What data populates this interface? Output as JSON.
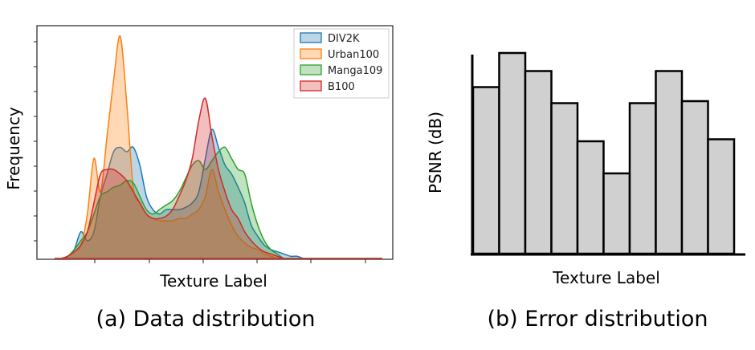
{
  "chart_data": [
    {
      "type": "area",
      "caption": "(a) Data distribution",
      "xlabel": "Texture Label",
      "ylabel": "Frequency",
      "legend_position": "top-right",
      "x": [
        0,
        2,
        4,
        6,
        8,
        10,
        12,
        14,
        16,
        18,
        20,
        22,
        24,
        26,
        28,
        30,
        32,
        34,
        36,
        38,
        40,
        42,
        44,
        46,
        48,
        50,
        52,
        54,
        56,
        58,
        60,
        62,
        64,
        66,
        68,
        70,
        72,
        74,
        76,
        78,
        80,
        82,
        84,
        86,
        88,
        90,
        92,
        94,
        96,
        98,
        100
      ],
      "ylim": [
        0,
        1
      ],
      "series": [
        {
          "name": "DIV2K",
          "color": "#1f77b4",
          "values": [
            0,
            0,
            0.01,
            0.04,
            0.12,
            0.08,
            0.12,
            0.28,
            0.38,
            0.48,
            0.5,
            0.48,
            0.5,
            0.42,
            0.28,
            0.22,
            0.2,
            0.22,
            0.22,
            0.22,
            0.23,
            0.25,
            0.3,
            0.45,
            0.58,
            0.5,
            0.42,
            0.38,
            0.32,
            0.25,
            0.15,
            0.1,
            0.06,
            0.04,
            0.03,
            0.02,
            0.01,
            0.01,
            0.0,
            0.0,
            0.0,
            0.0,
            0.0,
            0.0,
            0.0,
            0.0,
            0.0,
            0.0,
            0.0,
            0.0,
            0.0
          ]
        },
        {
          "name": "Urban100",
          "color": "#ff7f0e",
          "values": [
            0,
            0,
            0.01,
            0.03,
            0.06,
            0.2,
            0.45,
            0.3,
            0.55,
            0.8,
            1.0,
            0.7,
            0.32,
            0.25,
            0.2,
            0.18,
            0.17,
            0.17,
            0.17,
            0.18,
            0.18,
            0.2,
            0.22,
            0.28,
            0.4,
            0.3,
            0.22,
            0.15,
            0.1,
            0.07,
            0.05,
            0.04,
            0.02,
            0.01,
            0.0,
            0.0,
            0.0,
            0.0,
            0.0,
            0.0,
            0.0,
            0.0,
            0.0,
            0.0,
            0.0,
            0.0,
            0.0,
            0.0,
            0.0,
            0.0,
            0.0
          ]
        },
        {
          "name": "Manga109",
          "color": "#2ca02c",
          "values": [
            0,
            0,
            0.01,
            0.04,
            0.08,
            0.12,
            0.2,
            0.28,
            0.3,
            0.32,
            0.33,
            0.35,
            0.34,
            0.28,
            0.22,
            0.2,
            0.22,
            0.24,
            0.26,
            0.3,
            0.36,
            0.42,
            0.44,
            0.4,
            0.44,
            0.48,
            0.5,
            0.45,
            0.4,
            0.38,
            0.25,
            0.15,
            0.08,
            0.04,
            0.02,
            0.0,
            0.0,
            0.0,
            0.0,
            0.0,
            0.0,
            0.0,
            0.0,
            0.0,
            0.0,
            0.0,
            0.0,
            0.0,
            0.0,
            0.0,
            0.0
          ]
        },
        {
          "name": "B100",
          "color": "#d62728",
          "values": [
            0,
            0,
            0.01,
            0.03,
            0.06,
            0.12,
            0.25,
            0.38,
            0.4,
            0.4,
            0.38,
            0.35,
            0.3,
            0.25,
            0.2,
            0.18,
            0.18,
            0.19,
            0.22,
            0.28,
            0.35,
            0.45,
            0.62,
            0.72,
            0.55,
            0.4,
            0.3,
            0.22,
            0.18,
            0.12,
            0.08,
            0.05,
            0.03,
            0.02,
            0.01,
            0.0,
            0.0,
            0.0,
            0.0,
            0.0,
            0.0,
            0.0,
            0.0,
            0.0,
            0.0,
            0.0,
            0.0,
            0.0,
            0.0,
            0.0,
            0.0
          ]
        }
      ]
    },
    {
      "type": "bar",
      "caption": "(b) Error distribution",
      "xlabel": "Texture Label",
      "ylabel": "PSNR (dB)",
      "ylim": [
        0,
        100
      ],
      "values": [
        83,
        100,
        91,
        75,
        56,
        40,
        75,
        91,
        76,
        57
      ],
      "bar_color": "#d0d0d0",
      "edge_color": "#000000"
    }
  ]
}
